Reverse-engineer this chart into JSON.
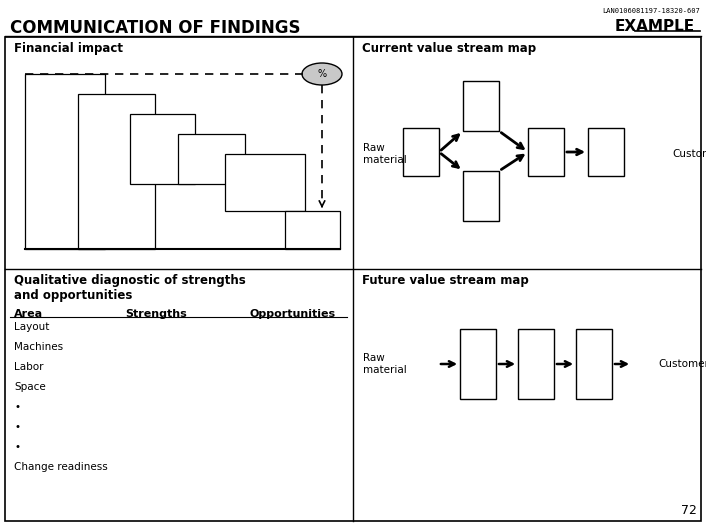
{
  "title": "COMMUNICATION OF FINDINGS",
  "example_label": "EXAMPLE",
  "doc_id": "LAN0106081197-18320-607",
  "top_left_label": "Financial impact",
  "top_right_label": "Current value stream map",
  "bot_left_label": "Qualitative diagnostic of strengths\nand opportunities",
  "bot_right_label": "Future value stream map",
  "qual_headers": [
    "Area",
    "Strengths",
    "Opportunities"
  ],
  "qual_rows": [
    "Layout",
    "Machines",
    "Labor",
    "Space",
    "•",
    "•",
    "•",
    "Change readiness"
  ],
  "raw_material": "Raw\nmaterial",
  "customer": "Customer",
  "percent_label": "%",
  "page_number": "72",
  "bg_color": "#ffffff",
  "border_color": "#000000",
  "text_color": "#000000",
  "ellipse_fill": "#c8c8c8"
}
